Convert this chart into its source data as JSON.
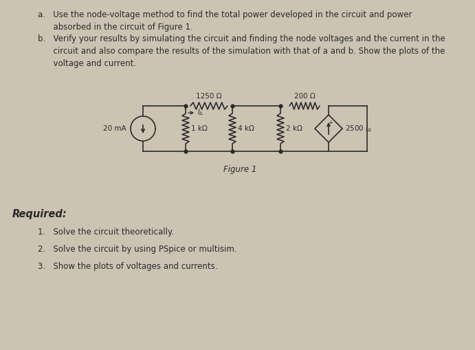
{
  "bg_color": "#cbc4b3",
  "text_color": "#2a2a2a",
  "line_color": "#2a2a2a",
  "title_a1": "a.   Use the node-voltage method to find the total power developed in the circuit and power",
  "title_a2": "      absorbed in the circuit of Figure 1.",
  "title_b1": "b.   Verify your results by simulating the circuit and finding the node voltages and the current in the",
  "title_b2": "      circuit and also compare the results of the simulation with that of a and b. Show the plots of the",
  "title_b3": "      voltage and current.",
  "required_label": "Required:",
  "req1": "1.   Solve the circuit theoretically.",
  "req2": "2.   Solve the circuit by using PSpice or multisim.",
  "req3": "3.   Show the plots of voltages and currents.",
  "figure_label": "Figure 1",
  "font_size_text": 8.5,
  "font_size_required": 10.5
}
